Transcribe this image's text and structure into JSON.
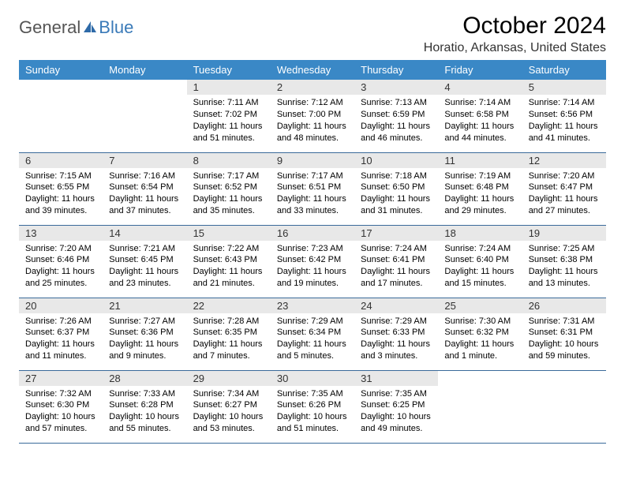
{
  "brand": {
    "part1": "General",
    "part2": "Blue"
  },
  "title": "October 2024",
  "location": "Horatio, Arkansas, United States",
  "colors": {
    "header_bg": "#3a88c6",
    "header_text": "#ffffff",
    "daynum_bg": "#e8e8e8",
    "row_divider": "#3a6a9a",
    "brand_accent": "#3a7ab8"
  },
  "fonts": {
    "title_size": 30,
    "location_size": 16,
    "header_size": 13,
    "cell_size": 11
  },
  "day_headers": [
    "Sunday",
    "Monday",
    "Tuesday",
    "Wednesday",
    "Thursday",
    "Friday",
    "Saturday"
  ],
  "weeks": [
    [
      null,
      null,
      {
        "n": "1",
        "sr": "Sunrise: 7:11 AM",
        "ss": "Sunset: 7:02 PM",
        "dl1": "Daylight: 11 hours",
        "dl2": "and 51 minutes."
      },
      {
        "n": "2",
        "sr": "Sunrise: 7:12 AM",
        "ss": "Sunset: 7:00 PM",
        "dl1": "Daylight: 11 hours",
        "dl2": "and 48 minutes."
      },
      {
        "n": "3",
        "sr": "Sunrise: 7:13 AM",
        "ss": "Sunset: 6:59 PM",
        "dl1": "Daylight: 11 hours",
        "dl2": "and 46 minutes."
      },
      {
        "n": "4",
        "sr": "Sunrise: 7:14 AM",
        "ss": "Sunset: 6:58 PM",
        "dl1": "Daylight: 11 hours",
        "dl2": "and 44 minutes."
      },
      {
        "n": "5",
        "sr": "Sunrise: 7:14 AM",
        "ss": "Sunset: 6:56 PM",
        "dl1": "Daylight: 11 hours",
        "dl2": "and 41 minutes."
      }
    ],
    [
      {
        "n": "6",
        "sr": "Sunrise: 7:15 AM",
        "ss": "Sunset: 6:55 PM",
        "dl1": "Daylight: 11 hours",
        "dl2": "and 39 minutes."
      },
      {
        "n": "7",
        "sr": "Sunrise: 7:16 AM",
        "ss": "Sunset: 6:54 PM",
        "dl1": "Daylight: 11 hours",
        "dl2": "and 37 minutes."
      },
      {
        "n": "8",
        "sr": "Sunrise: 7:17 AM",
        "ss": "Sunset: 6:52 PM",
        "dl1": "Daylight: 11 hours",
        "dl2": "and 35 minutes."
      },
      {
        "n": "9",
        "sr": "Sunrise: 7:17 AM",
        "ss": "Sunset: 6:51 PM",
        "dl1": "Daylight: 11 hours",
        "dl2": "and 33 minutes."
      },
      {
        "n": "10",
        "sr": "Sunrise: 7:18 AM",
        "ss": "Sunset: 6:50 PM",
        "dl1": "Daylight: 11 hours",
        "dl2": "and 31 minutes."
      },
      {
        "n": "11",
        "sr": "Sunrise: 7:19 AM",
        "ss": "Sunset: 6:48 PM",
        "dl1": "Daylight: 11 hours",
        "dl2": "and 29 minutes."
      },
      {
        "n": "12",
        "sr": "Sunrise: 7:20 AM",
        "ss": "Sunset: 6:47 PM",
        "dl1": "Daylight: 11 hours",
        "dl2": "and 27 minutes."
      }
    ],
    [
      {
        "n": "13",
        "sr": "Sunrise: 7:20 AM",
        "ss": "Sunset: 6:46 PM",
        "dl1": "Daylight: 11 hours",
        "dl2": "and 25 minutes."
      },
      {
        "n": "14",
        "sr": "Sunrise: 7:21 AM",
        "ss": "Sunset: 6:45 PM",
        "dl1": "Daylight: 11 hours",
        "dl2": "and 23 minutes."
      },
      {
        "n": "15",
        "sr": "Sunrise: 7:22 AM",
        "ss": "Sunset: 6:43 PM",
        "dl1": "Daylight: 11 hours",
        "dl2": "and 21 minutes."
      },
      {
        "n": "16",
        "sr": "Sunrise: 7:23 AM",
        "ss": "Sunset: 6:42 PM",
        "dl1": "Daylight: 11 hours",
        "dl2": "and 19 minutes."
      },
      {
        "n": "17",
        "sr": "Sunrise: 7:24 AM",
        "ss": "Sunset: 6:41 PM",
        "dl1": "Daylight: 11 hours",
        "dl2": "and 17 minutes."
      },
      {
        "n": "18",
        "sr": "Sunrise: 7:24 AM",
        "ss": "Sunset: 6:40 PM",
        "dl1": "Daylight: 11 hours",
        "dl2": "and 15 minutes."
      },
      {
        "n": "19",
        "sr": "Sunrise: 7:25 AM",
        "ss": "Sunset: 6:38 PM",
        "dl1": "Daylight: 11 hours",
        "dl2": "and 13 minutes."
      }
    ],
    [
      {
        "n": "20",
        "sr": "Sunrise: 7:26 AM",
        "ss": "Sunset: 6:37 PM",
        "dl1": "Daylight: 11 hours",
        "dl2": "and 11 minutes."
      },
      {
        "n": "21",
        "sr": "Sunrise: 7:27 AM",
        "ss": "Sunset: 6:36 PM",
        "dl1": "Daylight: 11 hours",
        "dl2": "and 9 minutes."
      },
      {
        "n": "22",
        "sr": "Sunrise: 7:28 AM",
        "ss": "Sunset: 6:35 PM",
        "dl1": "Daylight: 11 hours",
        "dl2": "and 7 minutes."
      },
      {
        "n": "23",
        "sr": "Sunrise: 7:29 AM",
        "ss": "Sunset: 6:34 PM",
        "dl1": "Daylight: 11 hours",
        "dl2": "and 5 minutes."
      },
      {
        "n": "24",
        "sr": "Sunrise: 7:29 AM",
        "ss": "Sunset: 6:33 PM",
        "dl1": "Daylight: 11 hours",
        "dl2": "and 3 minutes."
      },
      {
        "n": "25",
        "sr": "Sunrise: 7:30 AM",
        "ss": "Sunset: 6:32 PM",
        "dl1": "Daylight: 11 hours",
        "dl2": "and 1 minute."
      },
      {
        "n": "26",
        "sr": "Sunrise: 7:31 AM",
        "ss": "Sunset: 6:31 PM",
        "dl1": "Daylight: 10 hours",
        "dl2": "and 59 minutes."
      }
    ],
    [
      {
        "n": "27",
        "sr": "Sunrise: 7:32 AM",
        "ss": "Sunset: 6:30 PM",
        "dl1": "Daylight: 10 hours",
        "dl2": "and 57 minutes."
      },
      {
        "n": "28",
        "sr": "Sunrise: 7:33 AM",
        "ss": "Sunset: 6:28 PM",
        "dl1": "Daylight: 10 hours",
        "dl2": "and 55 minutes."
      },
      {
        "n": "29",
        "sr": "Sunrise: 7:34 AM",
        "ss": "Sunset: 6:27 PM",
        "dl1": "Daylight: 10 hours",
        "dl2": "and 53 minutes."
      },
      {
        "n": "30",
        "sr": "Sunrise: 7:35 AM",
        "ss": "Sunset: 6:26 PM",
        "dl1": "Daylight: 10 hours",
        "dl2": "and 51 minutes."
      },
      {
        "n": "31",
        "sr": "Sunrise: 7:35 AM",
        "ss": "Sunset: 6:25 PM",
        "dl1": "Daylight: 10 hours",
        "dl2": "and 49 minutes."
      },
      null,
      null
    ]
  ]
}
